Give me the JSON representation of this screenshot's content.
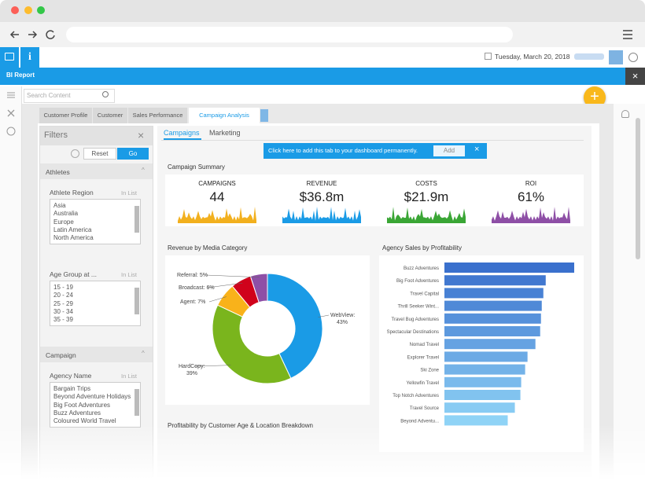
{
  "header": {
    "date": "Tuesday, March 20, 2018",
    "report_title": "BI Report"
  },
  "search": {
    "placeholder": "Search Content"
  },
  "tabs": [
    "Customer Profile",
    "Customer",
    "Sales Performance",
    "Campaign Analysis"
  ],
  "filters": {
    "title": "Filters",
    "reset": "Reset",
    "go": "Go",
    "sections": [
      {
        "title": "Athletes",
        "fields": [
          {
            "label": "Athlete Region",
            "operator": "In List",
            "options": [
              "Asia",
              "Australia",
              "Europe",
              "Latin America",
              "North America"
            ]
          },
          {
            "label": "Age Group at ...",
            "operator": "In List",
            "options": [
              "15 - 19",
              "20 - 24",
              "25 - 29",
              "30 - 34",
              "35 - 39"
            ]
          }
        ]
      },
      {
        "title": "Campaign",
        "fields": [
          {
            "label": "Agency Name",
            "operator": "In List",
            "options": [
              "Bargain Trips",
              "Beyond Adventure Holidays",
              "Big Foot Adventures",
              "Buzz Adventures",
              "Coloured World Travel"
            ]
          }
        ]
      }
    ]
  },
  "subtabs": [
    "Campaigns",
    "Marketing"
  ],
  "banner": {
    "text": "Click here to add this tab to your dashboard permanently.",
    "button": "Add"
  },
  "summary": {
    "title": "Campaign Summary",
    "kpis": [
      {
        "label": "CAMPAIGNS",
        "value": "44",
        "color": "#f2b01e"
      },
      {
        "label": "REVENUE",
        "value": "$36.8m",
        "color": "#1a9be6"
      },
      {
        "label": "COSTS",
        "value": "$21.9m",
        "color": "#3aa635"
      },
      {
        "label": "ROI",
        "value": "61%",
        "color": "#8e4fa6"
      }
    ]
  },
  "chart_data": [
    {
      "type": "pie",
      "title": "Revenue by Media Category",
      "categories": [
        "WebView:",
        "HardCopy:",
        "Agent:",
        "Broadcast:",
        "Referral:"
      ],
      "values": [
        43,
        39,
        7,
        6,
        5
      ],
      "value_labels": [
        "43%",
        "39%",
        "7%",
        "6%",
        "5%"
      ],
      "colors": [
        "#1a9be6",
        "#7ab51d",
        "#f9b21a",
        "#d0021b",
        "#8e4fa6"
      ]
    },
    {
      "type": "bar",
      "title": "Agency Sales by Profitability",
      "categories": [
        "Buzz Adventures",
        "Big Foot Adventures",
        "Travel Capital",
        "Thrill Seeker Wint...",
        "Travel Bug Adventures",
        "Spectacular Destinations",
        "Nomad Travel",
        "Explorer Travel",
        "Ski Zone",
        "Yellowfin Travel",
        "Top Notch Adventures",
        "Travel Source",
        "Beyond Adventu..."
      ],
      "values": [
        164,
        128,
        125,
        123,
        122,
        121,
        115,
        105,
        102,
        97,
        96,
        89,
        80
      ],
      "colors": [
        "#3a70cd",
        "#8fd3f6"
      ]
    }
  ],
  "breakdown_title": "Profitability by Customer Age & Location Breakdown"
}
